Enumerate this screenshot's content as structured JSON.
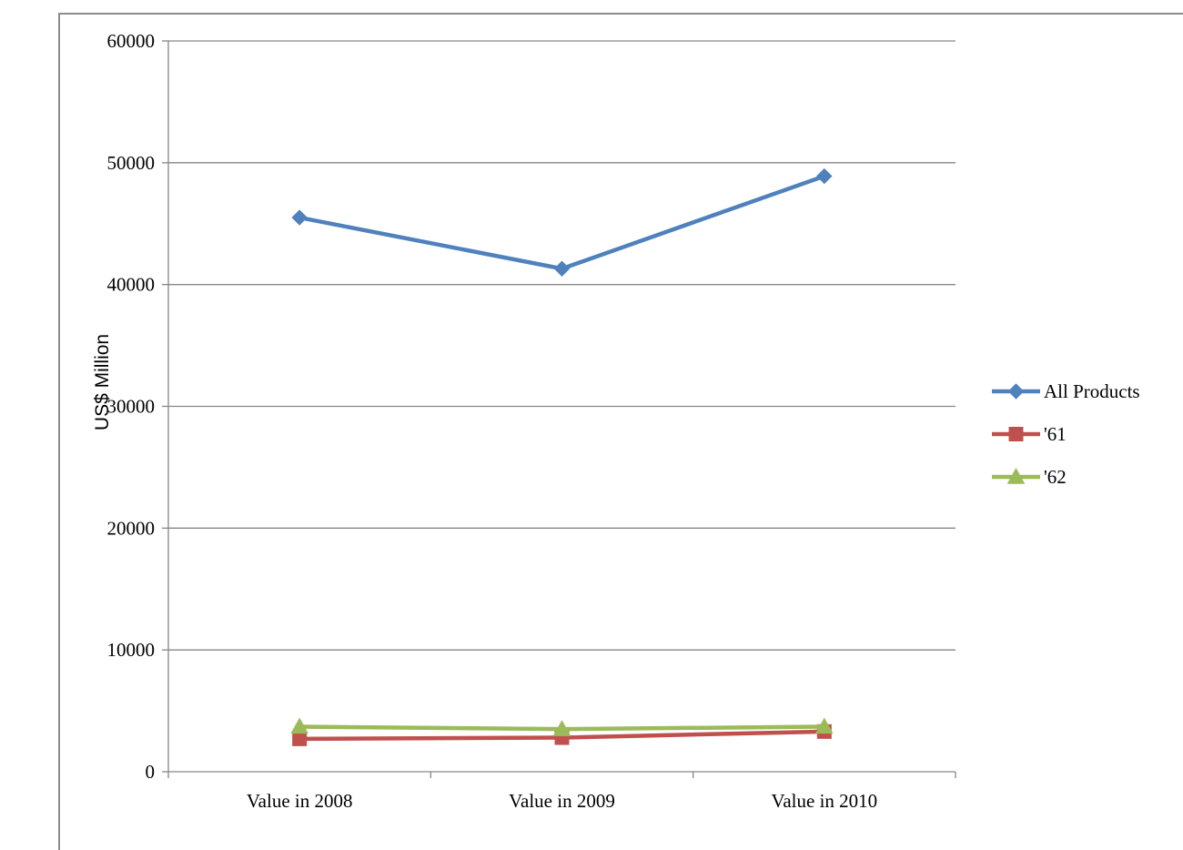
{
  "chart_data": {
    "type": "line",
    "title": "",
    "xlabel": "",
    "ylabel": "US$ Million",
    "categories": [
      "Value in 2008",
      "Value in 2009",
      "Value in 2010"
    ],
    "ylim": [
      0,
      60000
    ],
    "yticks": [
      0,
      10000,
      20000,
      30000,
      40000,
      50000,
      60000
    ],
    "grid": true,
    "legend_position": "right",
    "series": [
      {
        "name": "All Products",
        "values": [
          45500,
          41300,
          48900
        ],
        "color": "#4f81bd",
        "marker": "diamond"
      },
      {
        "name": "'61",
        "values": [
          2700,
          2800,
          3300
        ],
        "color": "#c0504d",
        "marker": "square"
      },
      {
        "name": "'62",
        "values": [
          3700,
          3500,
          3700
        ],
        "color": "#9bbb59",
        "marker": "triangle"
      }
    ]
  }
}
